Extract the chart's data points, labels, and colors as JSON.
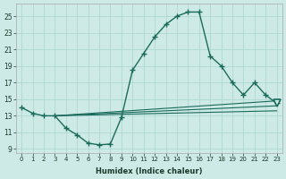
{
  "xlabel": "Humidex (Indice chaleur)",
  "bg_color": "#cdeae6",
  "grid_color": "#aad4cf",
  "line_color": "#1a6b5a",
  "xlim": [
    -0.5,
    23.5
  ],
  "ylim": [
    8.5,
    26.5
  ],
  "xticks": [
    0,
    1,
    2,
    3,
    4,
    5,
    6,
    7,
    8,
    9,
    10,
    11,
    12,
    13,
    14,
    15,
    16,
    17,
    18,
    19,
    20,
    21,
    22,
    23
  ],
  "yticks": [
    9,
    11,
    13,
    15,
    17,
    19,
    21,
    23,
    25
  ],
  "main_x": [
    0,
    1,
    2,
    3,
    4,
    5,
    6,
    7,
    8,
    9,
    10,
    11,
    12,
    13,
    14,
    15,
    16,
    17,
    18,
    19,
    20,
    21,
    22,
    23
  ],
  "main_y": [
    14.0,
    13.3,
    13.0,
    13.0,
    11.5,
    10.7,
    9.7,
    9.5,
    9.6,
    12.8,
    18.5,
    20.5,
    22.5,
    24.0,
    25.0,
    25.5,
    25.5,
    20.2,
    19.0,
    17.0,
    15.5,
    17.0,
    15.5,
    14.5
  ],
  "line1_x": [
    3,
    23
  ],
  "line1_y": [
    13.0,
    14.8
  ],
  "line2_x": [
    3,
    23
  ],
  "line2_y": [
    13.0,
    14.2
  ],
  "line3_x": [
    3,
    23
  ],
  "line3_y": [
    13.0,
    13.6
  ],
  "tri_x": 23,
  "tri_y": 14.5
}
